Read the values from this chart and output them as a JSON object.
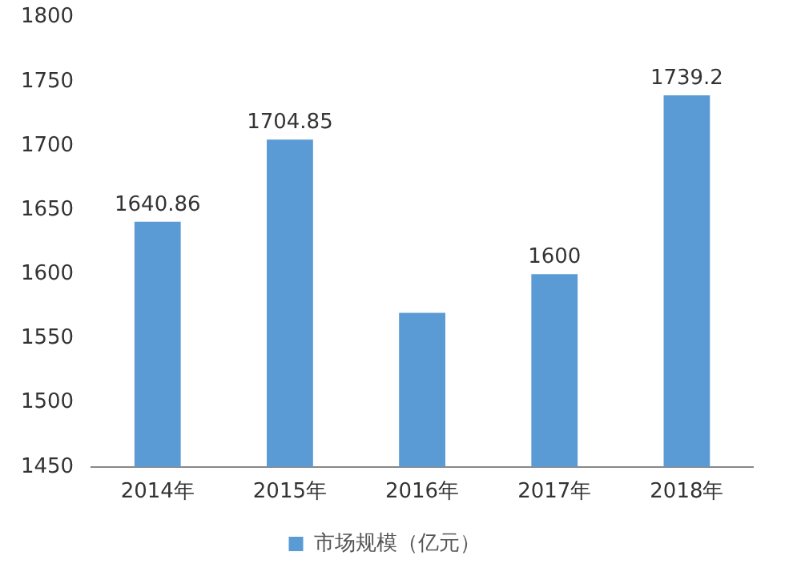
{
  "chart_data": {
    "type": "bar",
    "categories": [
      "2014年",
      "2015年",
      "2016年",
      "2017年",
      "2018年"
    ],
    "series": [
      {
        "name": "市场规模（亿元）",
        "color": "#5b9bd5",
        "values": [
          1640.86,
          1704.85,
          1570,
          1600,
          1739.2
        ],
        "value_labels": [
          "1640.86",
          "1704.85",
          null,
          "1600",
          "1739.2"
        ]
      }
    ],
    "ylim": [
      1450,
      1800
    ],
    "yticks": [
      1450,
      1500,
      1550,
      1600,
      1650,
      1700,
      1750,
      1800
    ],
    "grid": false,
    "legend": "bottom"
  }
}
